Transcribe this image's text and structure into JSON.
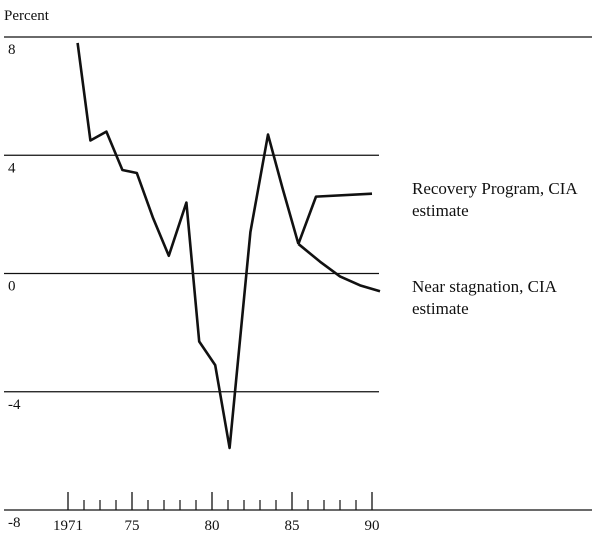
{
  "chart_data": {
    "type": "line",
    "ylabel": "Percent",
    "xlim": [
      1967,
      2004
    ],
    "ylim": [
      -8,
      8
    ],
    "yticks": [
      -8,
      -4,
      0,
      4,
      8
    ],
    "xticks": [
      1971,
      {
        "value": 1975,
        "label": "75"
      },
      {
        "value": 1980,
        "label": "80"
      },
      {
        "value": 1985,
        "label": "85"
      },
      {
        "value": 1990,
        "label": "90"
      }
    ],
    "xticks_minor": [
      1972,
      1973,
      1974,
      1976,
      1977,
      1978,
      1979,
      1981,
      1982,
      1983,
      1984,
      1986,
      1987,
      1988,
      1989
    ],
    "grid": true,
    "series": [
      {
        "color": "#111111",
        "x": [
          1971.6,
          1972.4,
          1973.4,
          1974.4,
          1975.3,
          1976.3,
          1977.3,
          1978.4,
          1979.2,
          1980.2,
          1981.1,
          1982.4,
          1983.5,
          1984.4,
          1985.4
        ],
        "values": [
          7.8,
          4.5,
          4.8,
          3.5,
          3.4,
          1.9,
          0.6,
          2.4,
          -2.3,
          -3.1,
          -5.9,
          1.4,
          4.7,
          2.9,
          1.0
        ]
      },
      {
        "name": "Recovery Program, CIA estimate",
        "color": "#111111",
        "x": [
          1985.4,
          1986.5,
          1990
        ],
        "values": [
          1.0,
          2.6,
          2.7
        ]
      },
      {
        "name": "Near stagnation, CIA estimate",
        "color": "#111111",
        "x": [
          1985.4,
          1986.75,
          1988,
          1989.25,
          1990.5
        ],
        "values": [
          1.0,
          0.4,
          -0.1,
          -0.4,
          -0.6
        ]
      }
    ]
  }
}
